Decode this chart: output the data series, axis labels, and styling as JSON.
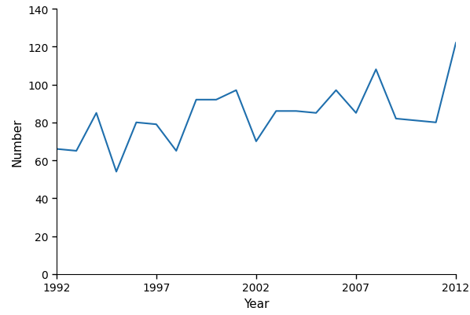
{
  "years": [
    1992,
    1993,
    1994,
    1995,
    1996,
    1997,
    1998,
    1999,
    2000,
    2001,
    2002,
    2003,
    2004,
    2005,
    2006,
    2007,
    2008,
    2009,
    2010,
    2011,
    2012
  ],
  "values": [
    66,
    65,
    85,
    54,
    80,
    79,
    65,
    92,
    92,
    97,
    70,
    86,
    86,
    85,
    97,
    85,
    108,
    82,
    81,
    80,
    122
  ],
  "line_color": "#1f6fad",
  "line_width": 1.5,
  "xlabel": "Year",
  "ylabel": "Number",
  "xlim": [
    1992,
    2012
  ],
  "ylim": [
    0,
    140
  ],
  "yticks": [
    0,
    20,
    40,
    60,
    80,
    100,
    120,
    140
  ],
  "xticks": [
    1992,
    1997,
    2002,
    2007,
    2012
  ],
  "background_color": "#ffffff",
  "tick_label_fontsize": 10,
  "axis_label_fontsize": 11
}
